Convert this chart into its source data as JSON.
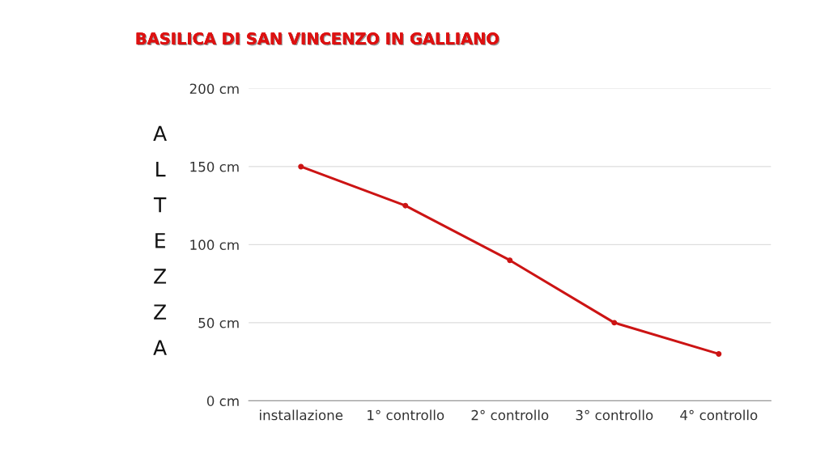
{
  "chart_data": {
    "type": "line",
    "title": "BASILICA DI SAN VINCENZO IN GALLIANO",
    "ylabel": "ALTEZZA",
    "categories": [
      "installazione",
      "1° controllo",
      "2° controllo",
      "3° controllo",
      "4° controllo"
    ],
    "series": [
      {
        "color": "#cc1414",
        "values": [
          150,
          125,
          90,
          50,
          30
        ]
      }
    ],
    "ylim": [
      0,
      200
    ],
    "yticks": [
      {
        "value": 0,
        "label": "0 cm"
      },
      {
        "value": 50,
        "label": "50 cm"
      },
      {
        "value": 100,
        "label": "100 cm"
      },
      {
        "value": 150,
        "label": "150 cm"
      },
      {
        "value": 200,
        "label": "200 cm"
      }
    ],
    "grid": "y",
    "marker": "circle",
    "line_style": "solid",
    "legend": false
  }
}
